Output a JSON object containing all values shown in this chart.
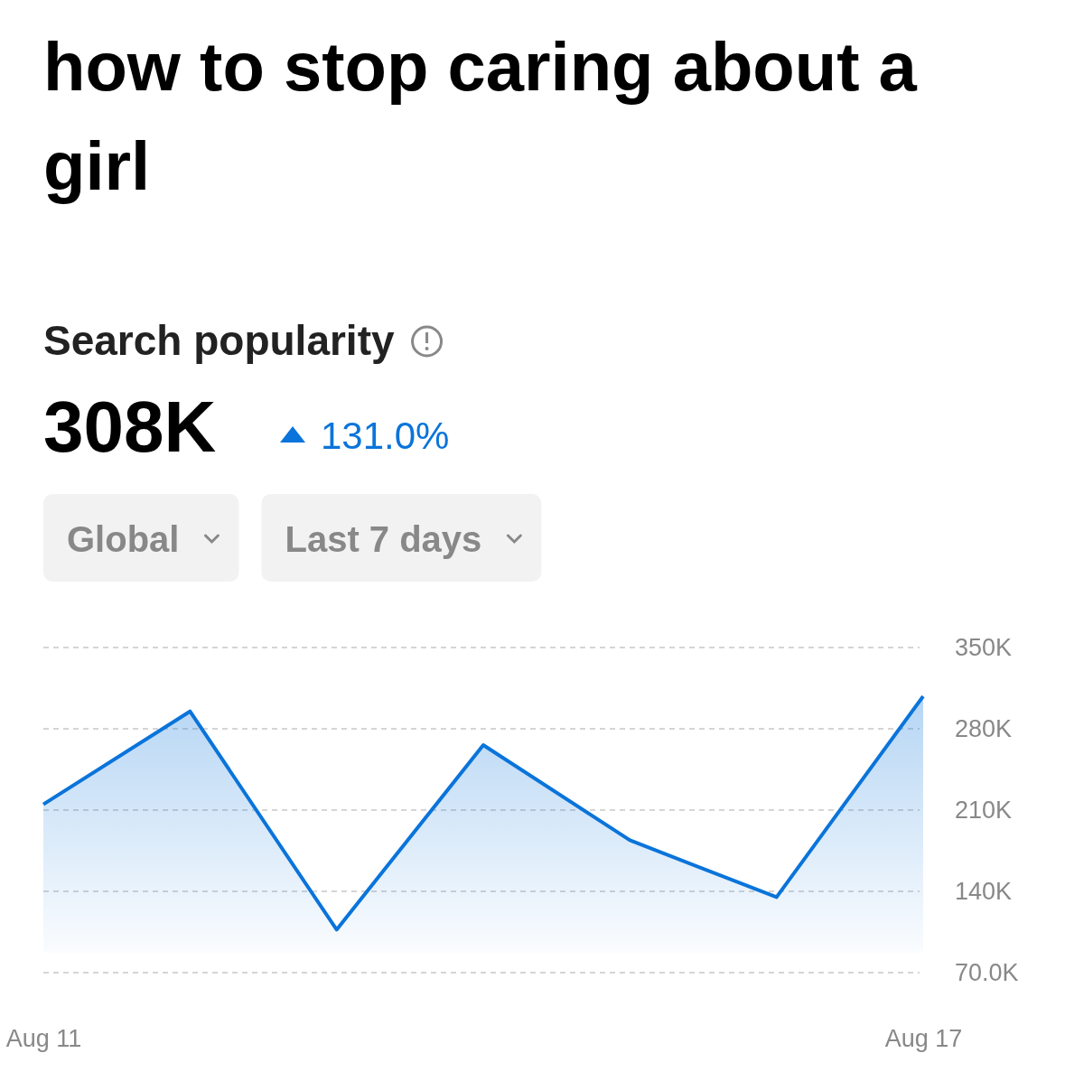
{
  "chart_data": {
    "type": "area",
    "title": "how to stop caring about a girl",
    "subtitle": "Search popularity",
    "annotations": [
      "308K",
      "131.0%",
      "Global",
      "Last 7 days"
    ],
    "categories": [
      "Aug 11",
      null,
      null,
      null,
      null,
      null,
      "Aug 17"
    ],
    "series": [
      {
        "color": "#0a74da",
        "values": [
          215000,
          295000,
          107000,
          266000,
          184000,
          135000,
          308000
        ]
      }
    ],
    "ylim": [
      70000,
      350000
    ],
    "yticks": [
      {
        "value": 70000,
        "label": "70.0K"
      },
      {
        "value": 140000,
        "label": "140K"
      },
      {
        "value": 210000,
        "label": "210K"
      },
      {
        "value": 280000,
        "label": "280K"
      },
      {
        "value": 350000,
        "label": "350K"
      }
    ],
    "grid": "y",
    "marker": "none",
    "line_style": "solid"
  }
}
